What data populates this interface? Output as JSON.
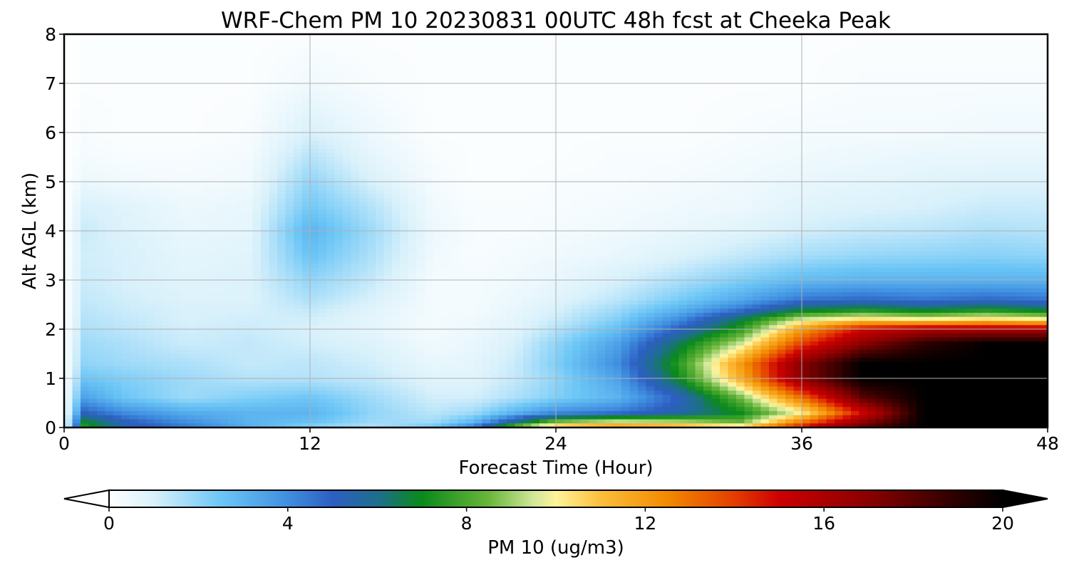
{
  "chart_data": {
    "type": "heatmap",
    "title": "WRF-Chem PM 10  20230831 00UTC 48h fcst at Cheeka Peak",
    "xlabel": "Forecast Time (Hour)",
    "ylabel": "Alt AGL (km)",
    "xlim": [
      0,
      48
    ],
    "ylim": [
      0,
      8
    ],
    "xticks": [
      0,
      12,
      24,
      36,
      48
    ],
    "yticks": [
      0,
      1,
      2,
      3,
      4,
      5,
      6,
      7,
      8
    ],
    "grid": true,
    "colorbar": {
      "label": "PM 10  (ug/m3)",
      "min": 0,
      "max": 20,
      "ticks": [
        0,
        4,
        8,
        12,
        16,
        20
      ],
      "extend": "both",
      "orientation": "horizontal",
      "stops": [
        {
          "v": 0,
          "c": "#ffffff"
        },
        {
          "v": 1,
          "c": "#d9f1fb"
        },
        {
          "v": 2.5,
          "c": "#6cc6f6"
        },
        {
          "v": 4,
          "c": "#3f8fe0"
        },
        {
          "v": 5,
          "c": "#2d5fc2"
        },
        {
          "v": 6,
          "c": "#1e6e8e"
        },
        {
          "v": 7,
          "c": "#0a8a1a"
        },
        {
          "v": 8.5,
          "c": "#6ab63b"
        },
        {
          "v": 9.5,
          "c": "#cfe79a"
        },
        {
          "v": 10,
          "c": "#fff39a"
        },
        {
          "v": 11,
          "c": "#fbbf3c"
        },
        {
          "v": 12.5,
          "c": "#f28a00"
        },
        {
          "v": 14,
          "c": "#e33d00"
        },
        {
          "v": 15,
          "c": "#cc0000"
        },
        {
          "v": 17,
          "c": "#8a0000"
        },
        {
          "v": 19,
          "c": "#2a0000"
        },
        {
          "v": 20,
          "c": "#000000"
        }
      ]
    },
    "x": [
      0,
      1,
      3,
      6,
      9,
      12,
      15,
      18,
      20,
      22,
      24,
      27,
      30,
      33,
      36,
      39,
      42,
      45,
      48
    ],
    "y": [
      0,
      0.1,
      0.3,
      0.6,
      1,
      1.3,
      1.7,
      2,
      2.2,
      2.4,
      2.6,
      3,
      3.5,
      4,
      4.5,
      5,
      5.5,
      6,
      7,
      8
    ],
    "z": [
      [
        0,
        7.5,
        5.5,
        4.5,
        3.2,
        2,
        1.5,
        2.5,
        4.5,
        9,
        11.5,
        12.5,
        12,
        11,
        15,
        18,
        20,
        20,
        20
      ],
      [
        0,
        7,
        5.2,
        4,
        3,
        2.6,
        1.8,
        1.8,
        3,
        6,
        9,
        10,
        9.5,
        8.5,
        13,
        17,
        20,
        20,
        20
      ],
      [
        0,
        5,
        4,
        3.2,
        3,
        3,
        2,
        1.4,
        1.8,
        3,
        4,
        4.5,
        5.5,
        7,
        10,
        15,
        20,
        20,
        20
      ],
      [
        0,
        3.5,
        2.5,
        1.8,
        2.2,
        2.5,
        1.8,
        1.1,
        1.1,
        1.6,
        2.2,
        3,
        5,
        8.5,
        13,
        18,
        20,
        20,
        20
      ],
      [
        0,
        2.5,
        2.2,
        1.8,
        1.5,
        1.5,
        1.3,
        0.8,
        0.8,
        1.3,
        2,
        3.5,
        7,
        11.5,
        17,
        20,
        20,
        20,
        20
      ],
      [
        0,
        2,
        1.8,
        1.6,
        1.3,
        1.4,
        1.1,
        0.6,
        0.7,
        1.2,
        2.2,
        4,
        7.5,
        12,
        17,
        20,
        20,
        20,
        20
      ],
      [
        0,
        1.8,
        1.6,
        1.2,
        1.3,
        1.1,
        0.9,
        0.4,
        0.6,
        1,
        2,
        3.5,
        6.5,
        9.5,
        14,
        17,
        19,
        20,
        20
      ],
      [
        0,
        1.6,
        1.4,
        1.1,
        1.2,
        1,
        0.7,
        0.3,
        0.5,
        0.8,
        1.5,
        2.7,
        5,
        7.5,
        12,
        15,
        16,
        16,
        16
      ],
      [
        0,
        1.5,
        1.3,
        1,
        1.1,
        1.1,
        0.7,
        0.3,
        0.4,
        0.7,
        1.2,
        2.2,
        4,
        6.5,
        9.5,
        10.5,
        10,
        10.5,
        10
      ],
      [
        0,
        1.4,
        1.2,
        1,
        1,
        1.3,
        0.8,
        0.3,
        0.3,
        0.6,
        1,
        1.8,
        3,
        4.5,
        6.5,
        7,
        6.5,
        7,
        6.5
      ],
      [
        0,
        1.3,
        1.1,
        0.9,
        0.9,
        1.6,
        1,
        0.3,
        0.3,
        0.5,
        0.8,
        1.4,
        2.3,
        3.3,
        4.5,
        4.8,
        4.5,
        4.8,
        4.5
      ],
      [
        0,
        1.2,
        1,
        0.8,
        0.9,
        2,
        1.3,
        0.3,
        0.3,
        0.4,
        0.6,
        1,
        1.6,
        2.2,
        2.8,
        3,
        3,
        3,
        3
      ],
      [
        0,
        1.1,
        1,
        0.7,
        0.8,
        2.6,
        1.6,
        0.4,
        0.2,
        0.3,
        0.4,
        0.6,
        0.9,
        1.3,
        1.7,
        1.9,
        2,
        2.1,
        2
      ],
      [
        0,
        1.2,
        0.9,
        0.6,
        0.7,
        3,
        1.8,
        0.5,
        0.2,
        0.2,
        0.3,
        0.4,
        0.6,
        0.8,
        1.1,
        1.3,
        1.4,
        1.6,
        1.5
      ],
      [
        0,
        1,
        0.8,
        0.5,
        0.6,
        2.4,
        1.5,
        0.4,
        0.2,
        0.2,
        0.2,
        0.3,
        0.4,
        0.5,
        0.8,
        0.9,
        1,
        1.2,
        1.2
      ],
      [
        0,
        0.5,
        0.4,
        0.3,
        0.4,
        2,
        1,
        0.3,
        0.1,
        0.1,
        0.2,
        0.2,
        0.3,
        0.4,
        0.6,
        0.7,
        0.8,
        0.9,
        0.9
      ],
      [
        0,
        0.3,
        0.2,
        0.2,
        0.3,
        1.5,
        0.7,
        0.2,
        0.1,
        0.1,
        0.1,
        0.2,
        0.2,
        0.3,
        0.4,
        0.5,
        0.6,
        0.6,
        0.6
      ],
      [
        0,
        0.2,
        0.1,
        0.1,
        0.2,
        1,
        0.5,
        0.1,
        0.1,
        0.1,
        0.1,
        0.1,
        0.1,
        0.2,
        0.3,
        0.3,
        0.3,
        0.4,
        0.4
      ],
      [
        0,
        0.1,
        0.1,
        0.1,
        0.1,
        0.4,
        0.2,
        0.1,
        0.1,
        0.1,
        0.1,
        0.1,
        0.1,
        0.1,
        0.1,
        0.2,
        0.2,
        0.2,
        0.2
      ],
      [
        0,
        0.1,
        0.1,
        0.1,
        0.1,
        0.1,
        0.1,
        0.1,
        0.1,
        0.1,
        0.1,
        0.1,
        0.1,
        0.1,
        0.1,
        0.1,
        0.1,
        0.1,
        0.1
      ]
    ]
  }
}
